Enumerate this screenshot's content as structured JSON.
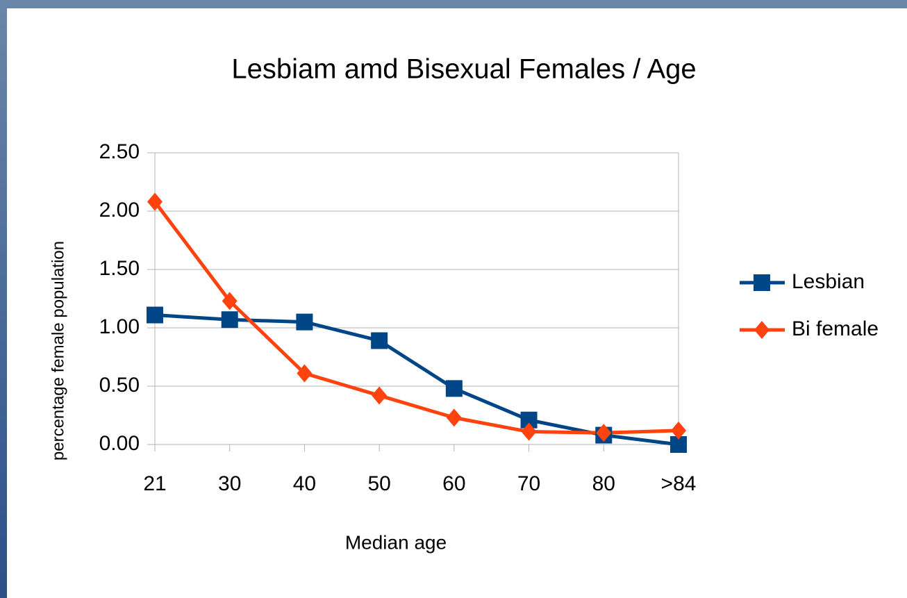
{
  "chart_data": {
    "type": "line",
    "title": "Lesbiam amd Bisexual Females / Age",
    "x_label": "Median age",
    "y_label": "percentage female population",
    "categories": [
      "21",
      "30",
      "40",
      "50",
      "60",
      "70",
      "80",
      ">84"
    ],
    "series": [
      {
        "name": "Lesbian",
        "color": "#004586",
        "marker": "square",
        "values": [
          1.11,
          1.07,
          1.05,
          0.89,
          0.48,
          0.21,
          0.08,
          0.0
        ]
      },
      {
        "name": "Bi female",
        "color": "#ff420e",
        "marker": "diamond",
        "values": [
          2.08,
          1.23,
          0.61,
          0.42,
          0.23,
          0.11,
          0.1,
          0.12
        ]
      }
    ],
    "ylim": [
      0,
      2.5
    ],
    "yticks": [
      {
        "value": 0,
        "label": "0.00"
      },
      {
        "value": 0.5,
        "label": "0.50"
      },
      {
        "value": 1,
        "label": "1.00"
      },
      {
        "value": 1.5,
        "label": "1.50"
      },
      {
        "value": 2,
        "label": "2.00"
      },
      {
        "value": 2.5,
        "label": "2.50"
      }
    ],
    "grid": true,
    "legend": "right"
  }
}
